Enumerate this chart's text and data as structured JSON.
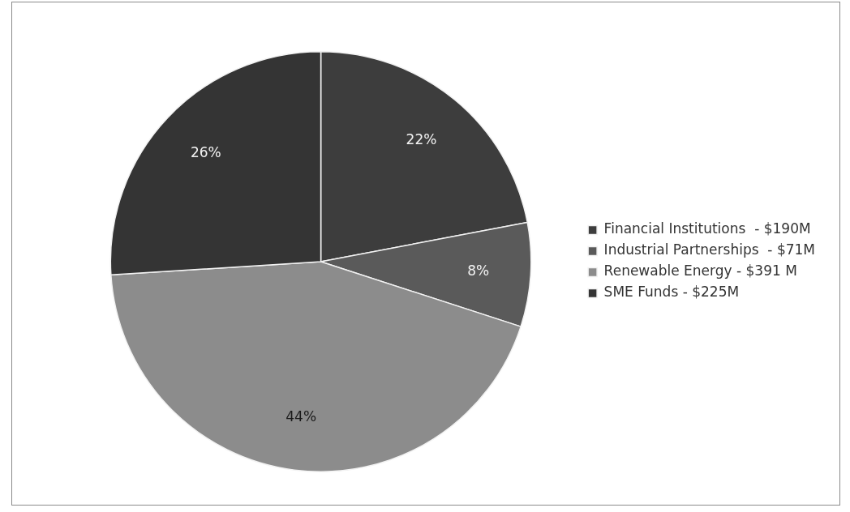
{
  "chart_data": {
    "type": "pie",
    "categories": [
      "Financial Institutions  - $190M",
      "Industrial Partnerships  - $71M",
      "Renewable Energy - $391 M",
      "SME Funds - $225M"
    ],
    "values": [
      22,
      8,
      44,
      26
    ],
    "value_labels": [
      "22%",
      "8%",
      "44%",
      "26%"
    ],
    "colors": [
      "#3d3d3d",
      "#5a5a5a",
      "#8c8c8c",
      "#343434"
    ],
    "legend": "right"
  }
}
